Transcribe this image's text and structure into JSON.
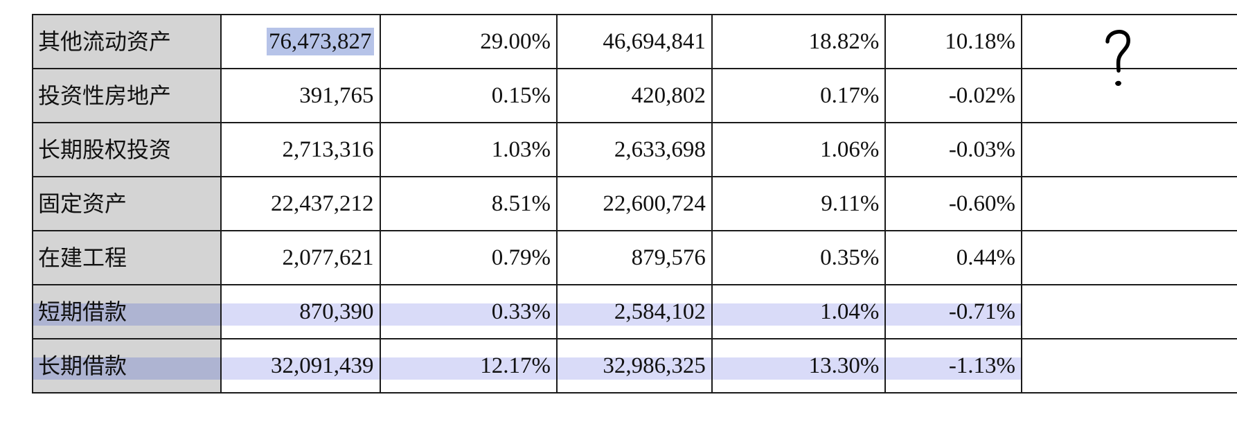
{
  "rows": [
    {
      "label": "其他流动资产",
      "v1": "76,473,827",
      "p1": "29.00%",
      "v2": "46,694,841",
      "p2": "18.82%",
      "diff": "10.18%"
    },
    {
      "label": "投资性房地产",
      "v1": "391,765",
      "p1": "0.15%",
      "v2": "420,802",
      "p2": "0.17%",
      "diff": "-0.02%"
    },
    {
      "label": "长期股权投资",
      "v1": "2,713,316",
      "p1": "1.03%",
      "v2": "2,633,698",
      "p2": "1.06%",
      "diff": "-0.03%"
    },
    {
      "label": "固定资产",
      "v1": "22,437,212",
      "p1": "8.51%",
      "v2": "22,600,724",
      "p2": "9.11%",
      "diff": "-0.60%"
    },
    {
      "label": "在建工程",
      "v1": "2,077,621",
      "p1": "0.79%",
      "v2": "879,576",
      "p2": "0.35%",
      "diff": "0.44%"
    },
    {
      "label": "短期借款",
      "v1": "870,390",
      "p1": "0.33%",
      "v2": "2,584,102",
      "p2": "1.04%",
      "diff": "-0.71%"
    },
    {
      "label": "长期借款",
      "v1": "32,091,439",
      "p1": "12.17%",
      "v2": "32,986,325",
      "p2": "13.30%",
      "diff": "-1.13%"
    }
  ],
  "annotation_mark": "?",
  "colors": {
    "label_bg": "#d4d4d4",
    "row_highlight": "#d9dbf8",
    "label_highlight": "#aeb4d2",
    "cell_selection": "#b6c3e8",
    "border": "#1a1a1a"
  }
}
